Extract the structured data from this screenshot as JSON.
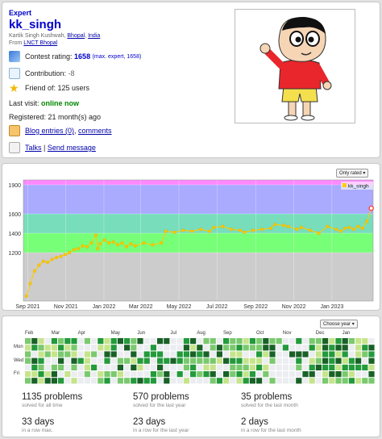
{
  "profile": {
    "rank": "Expert",
    "handle": "kk_singh",
    "full_name": "Kartik Singh Kushwah,",
    "city": "Bhopal",
    "country": "India",
    "from_label": "From",
    "organization": "LNCT Bhopal",
    "contest_rating_label": "Contest rating:",
    "contest_rating": "1658",
    "max_rating": "(max. expert, 1658)",
    "contribution_label": "Contribution:",
    "contribution": "-8",
    "friend_of": "Friend of: 125 users",
    "last_visit_label": "Last visit:",
    "last_visit": "online now",
    "registered": "Registered: 21 month(s) ago",
    "blog_entries": "Blog entries (0)",
    "comments": "comments",
    "talks": "Talks",
    "send_message": "Send message",
    "colors": {
      "rank": "#0000cc",
      "online": "#008800",
      "link": "#0000aa"
    },
    "icons": [
      "rating-icon",
      "contribution-icon",
      "star-icon",
      "blog-icon",
      "envelope-icon"
    ]
  },
  "rating_section": {
    "select_value": "Only rated"
  },
  "chart_data": {
    "type": "line",
    "series": [
      {
        "name": "kk_singh",
        "points": [
          [
            "2021-08-30",
            750
          ],
          [
            "2021-09-05",
            880
          ],
          [
            "2021-09-12",
            1010
          ],
          [
            "2021-09-19",
            1070
          ],
          [
            "2021-09-26",
            1110
          ],
          [
            "2021-10-03",
            1100
          ],
          [
            "2021-10-10",
            1130
          ],
          [
            "2021-10-17",
            1150
          ],
          [
            "2021-10-24",
            1160
          ],
          [
            "2021-10-31",
            1180
          ],
          [
            "2021-11-07",
            1200
          ],
          [
            "2021-11-14",
            1230
          ],
          [
            "2021-11-21",
            1240
          ],
          [
            "2021-11-28",
            1270
          ],
          [
            "2021-12-05",
            1260
          ],
          [
            "2021-12-12",
            1300
          ],
          [
            "2021-12-19",
            1380
          ],
          [
            "2021-12-22",
            1240
          ],
          [
            "2021-12-26",
            1290
          ],
          [
            "2022-01-02",
            1330
          ],
          [
            "2022-01-09",
            1300
          ],
          [
            "2022-01-16",
            1310
          ],
          [
            "2022-01-23",
            1280
          ],
          [
            "2022-01-30",
            1300
          ],
          [
            "2022-02-06",
            1260
          ],
          [
            "2022-02-13",
            1290
          ],
          [
            "2022-02-20",
            1270
          ],
          [
            "2022-03-06",
            1300
          ],
          [
            "2022-03-20",
            1280
          ],
          [
            "2022-04-03",
            1300
          ],
          [
            "2022-04-10",
            1420
          ],
          [
            "2022-04-24",
            1410
          ],
          [
            "2022-05-08",
            1430
          ],
          [
            "2022-05-22",
            1420
          ],
          [
            "2022-06-05",
            1440
          ],
          [
            "2022-06-19",
            1420
          ],
          [
            "2022-06-26",
            1460
          ],
          [
            "2022-07-10",
            1470
          ],
          [
            "2022-07-24",
            1440
          ],
          [
            "2022-08-07",
            1430
          ],
          [
            "2022-08-14",
            1410
          ],
          [
            "2022-08-28",
            1430
          ],
          [
            "2022-09-11",
            1440
          ],
          [
            "2022-09-25",
            1450
          ],
          [
            "2022-10-02",
            1490
          ],
          [
            "2022-10-16",
            1480
          ],
          [
            "2022-10-23",
            1470
          ],
          [
            "2022-11-06",
            1440
          ],
          [
            "2022-11-13",
            1460
          ],
          [
            "2022-11-27",
            1430
          ],
          [
            "2022-12-11",
            1400
          ],
          [
            "2022-12-25",
            1470
          ],
          [
            "2023-01-08",
            1440
          ],
          [
            "2023-01-15",
            1420
          ],
          [
            "2023-01-22",
            1450
          ],
          [
            "2023-01-29",
            1460
          ],
          [
            "2023-02-05",
            1440
          ],
          [
            "2023-02-12",
            1470
          ],
          [
            "2023-02-19",
            1450
          ],
          [
            "2023-02-26",
            1520
          ],
          [
            "2023-03-05",
            1658
          ]
        ]
      }
    ],
    "x_ticks": [
      "Sep 2021",
      "Nov 2021",
      "Jan 2022",
      "Mar 2022",
      "May 2022",
      "Jul 2022",
      "Sep 2022",
      "Nov 2022",
      "Jan 2023"
    ],
    "y_ticks": [
      1200,
      1400,
      1600,
      1900
    ],
    "xlim": [
      "2021-08-25",
      "2023-03-08"
    ],
    "ylim": [
      700,
      1950
    ],
    "bands": [
      {
        "from": 700,
        "to": 1200,
        "color": "#cccccc"
      },
      {
        "from": 1200,
        "to": 1400,
        "color": "#77ff77"
      },
      {
        "from": 1400,
        "to": 1600,
        "color": "#77ddbb"
      },
      {
        "from": 1600,
        "to": 1900,
        "color": "#aaaaff"
      },
      {
        "from": 1900,
        "to": 1950,
        "color": "#ff88ff"
      }
    ],
    "line_color": "#ffcc00",
    "last_point_color": "#ff4444",
    "legend": "top-right",
    "grid": true
  },
  "activity": {
    "select_value": "Choose year",
    "months": [
      "Feb",
      "Mar",
      "Apr",
      "May",
      "Jun",
      "Jul",
      "Aug",
      "Sep",
      "Oct",
      "Nov",
      "Dec",
      "Jan"
    ],
    "day_labels": [
      "Mon",
      "Wed",
      "Fri"
    ],
    "colors": [
      "#ebedf0",
      "#c6e48b",
      "#7bc96f",
      "#239a3b",
      "#196127"
    ],
    "stats": [
      {
        "big": "1135 problems",
        "sub": "solved for all time"
      },
      {
        "big": "570 problems",
        "sub": "solved for the last year"
      },
      {
        "big": "35 problems",
        "sub": "solved for the last month"
      },
      {
        "big": "33 days",
        "sub": "in a row max."
      },
      {
        "big": "23 days",
        "sub": "in a row for the last year"
      },
      {
        "big": "2 days",
        "sub": "in a row for the last month"
      }
    ]
  }
}
